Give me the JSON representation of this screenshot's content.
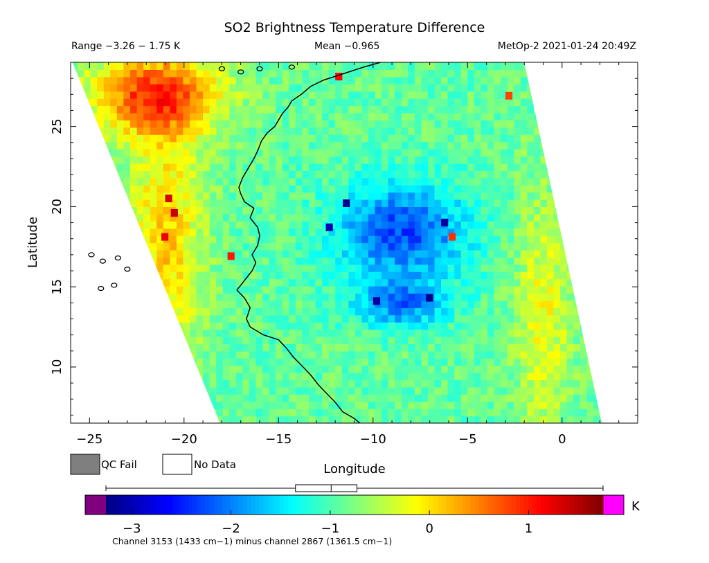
{
  "header": {
    "title": "SO2 Brightness Temperature Difference",
    "range_text": "Range −3.26 − 1.75 K",
    "mean_text": "Mean −0.965",
    "satellite_time": "MetOp-2 2021-01-24 20:49Z"
  },
  "legend_boxes": {
    "qc_fail_label": "QC Fail",
    "no_data_label": "No Data",
    "qc_fail_color": "#7f7f7f",
    "no_data_color": "#ffffff"
  },
  "colorbar": {
    "unit": "K",
    "footer": "Channel 3153 (1433 cm−1) minus channel 2867 (1361.5 cm−1)",
    "vmin": -3.26,
    "vmax": 1.75,
    "display_min": -3.5,
    "display_max": 2.0,
    "ticks": [
      -3,
      -2,
      -1,
      0,
      1
    ],
    "tick_labels": [
      "−3",
      "−2",
      "−1",
      "0",
      "1"
    ],
    "under_color": "#800080",
    "over_color": "#ff00ff",
    "boxplot": {
      "whisker_low": -3.26,
      "q1": -1.35,
      "median": -0.99,
      "q3": -0.73,
      "whisker_high": 1.75
    }
  },
  "chart_data": {
    "type": "heatmap",
    "title": "SO2 Brightness Temperature Difference",
    "xlabel": "Longitude",
    "ylabel": "Latitude",
    "xlim": [
      -26.0,
      4.0
    ],
    "ylim": [
      6.5,
      29.0
    ],
    "xticks": [
      -25,
      -20,
      -15,
      -10,
      -5,
      0
    ],
    "xtick_labels": [
      "−25",
      "−20",
      "−15",
      "−10",
      "−5",
      "0"
    ],
    "yticks": [
      10,
      15,
      20,
      25
    ],
    "ytick_labels": [
      "10",
      "15",
      "20",
      "25"
    ],
    "units": "K",
    "colormap": "jet",
    "swath_corners": {
      "top_left": [
        -25.9,
        29.0
      ],
      "bottom_left": [
        -18.1,
        6.5
      ],
      "bottom_right": [
        2.1,
        6.5
      ],
      "top_right": [
        -2.0,
        29.0
      ]
    },
    "field_summary": {
      "background_value": -0.9,
      "features": [
        {
          "name": "north-west warm area",
          "lon": -21.5,
          "lat": 27.0,
          "value": 0.8,
          "spread_lon": 3.5,
          "spread_lat": 2.5
        },
        {
          "name": "central cold area",
          "lon": -8.5,
          "lat": 18.5,
          "value": -2.3,
          "spread_lon": 3.5,
          "spread_lat": 3.0
        },
        {
          "name": "southern cold area",
          "lon": -8.5,
          "lat": 14.0,
          "value": -2.0,
          "spread_lon": 2.5,
          "spread_lat": 1.5
        },
        {
          "name": "western warm edge",
          "lon": -21.0,
          "lat": 18.0,
          "value": 0.1,
          "spread_lon": 2.0,
          "spread_lat": 8.0
        },
        {
          "name": "eastern warm edge",
          "lon": -1.0,
          "lat": 13.0,
          "value": -0.2,
          "spread_lon": 1.5,
          "spread_lat": 8.0
        }
      ],
      "hot_pixels": [
        {
          "lon": -21.0,
          "lat": 20.3,
          "value": 1.3
        },
        {
          "lon": -21.2,
          "lat": 17.9,
          "value": 1.2
        },
        {
          "lon": -20.7,
          "lat": 19.4,
          "value": 1.4
        },
        {
          "lon": -17.7,
          "lat": 16.7,
          "value": 1.0
        },
        {
          "lon": -6.0,
          "lat": 17.9,
          "value": 0.9
        },
        {
          "lon": -3.0,
          "lat": 26.7,
          "value": 0.8
        },
        {
          "lon": -12.0,
          "lat": 27.9,
          "value": 1.1
        }
      ],
      "cold_pixels": [
        {
          "lon": -11.6,
          "lat": 20.0,
          "value": -3.2
        },
        {
          "lon": -7.2,
          "lat": 14.1,
          "value": -3.2
        },
        {
          "lon": -10.0,
          "lat": 13.9,
          "value": -3.1
        },
        {
          "lon": -12.5,
          "lat": 18.5,
          "value": -3.0
        },
        {
          "lon": -6.4,
          "lat": 18.8,
          "value": -3.1
        }
      ]
    },
    "coastline": [
      [
        -9.6,
        29.0
      ],
      [
        -10.5,
        28.7
      ],
      [
        -11.8,
        28.2
      ],
      [
        -12.6,
        27.9
      ],
      [
        -13.3,
        27.5
      ],
      [
        -13.8,
        27.0
      ],
      [
        -14.3,
        26.6
      ],
      [
        -14.5,
        26.2
      ],
      [
        -14.8,
        25.8
      ],
      [
        -15.2,
        25.0
      ],
      [
        -15.6,
        24.6
      ],
      [
        -15.9,
        24.1
      ],
      [
        -16.1,
        23.5
      ],
      [
        -16.3,
        23.0
      ],
      [
        -16.6,
        22.4
      ],
      [
        -16.9,
        21.8
      ],
      [
        -17.1,
        21.2
      ],
      [
        -17.0,
        20.8
      ],
      [
        -16.8,
        20.3
      ],
      [
        -16.3,
        19.9
      ],
      [
        -16.5,
        19.3
      ],
      [
        -16.1,
        18.7
      ],
      [
        -16.0,
        18.2
      ],
      [
        -16.1,
        17.6
      ],
      [
        -16.4,
        17.0
      ],
      [
        -16.2,
        16.5
      ],
      [
        -16.4,
        16.0
      ],
      [
        -16.8,
        15.4
      ],
      [
        -17.2,
        14.8
      ],
      [
        -16.8,
        14.3
      ],
      [
        -16.5,
        13.7
      ],
      [
        -16.7,
        13.0
      ],
      [
        -16.5,
        12.5
      ],
      [
        -15.8,
        12.0
      ],
      [
        -15.0,
        11.7
      ],
      [
        -14.6,
        11.2
      ],
      [
        -14.2,
        10.6
      ],
      [
        -13.7,
        10.0
      ],
      [
        -13.3,
        9.5
      ],
      [
        -12.9,
        8.9
      ],
      [
        -12.5,
        8.4
      ],
      [
        -12.0,
        7.8
      ],
      [
        -11.6,
        7.2
      ],
      [
        -11.0,
        6.8
      ],
      [
        -10.7,
        6.5
      ]
    ],
    "islands": [
      {
        "lon": -18.0,
        "lat": 28.6
      },
      {
        "lon": -17.0,
        "lat": 28.4
      },
      {
        "lon": -16.0,
        "lat": 28.6
      },
      {
        "lon": -14.3,
        "lat": 28.7
      },
      {
        "lon": -24.9,
        "lat": 17.0
      },
      {
        "lon": -24.3,
        "lat": 16.6
      },
      {
        "lon": -23.5,
        "lat": 16.8
      },
      {
        "lon": -23.0,
        "lat": 16.1
      },
      {
        "lon": -24.4,
        "lat": 14.9
      },
      {
        "lon": -23.7,
        "lat": 15.1
      }
    ]
  }
}
